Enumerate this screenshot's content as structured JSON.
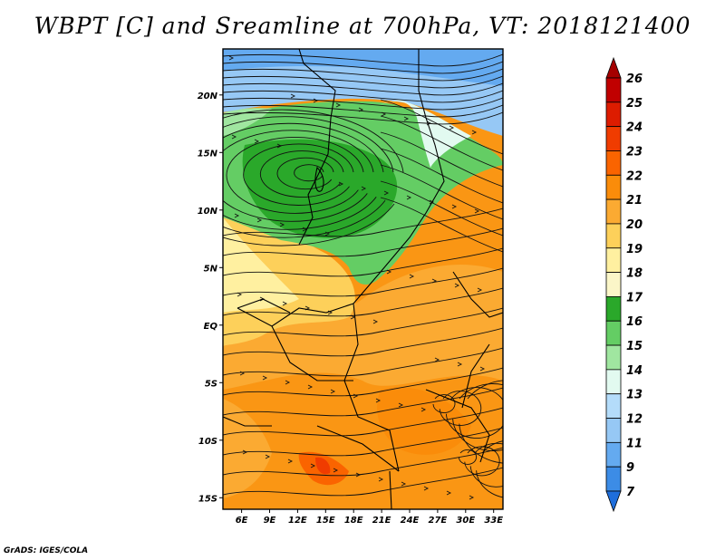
{
  "title": "WBPT [C] and Sreamline at 700hPa, VT: 2018121400",
  "credit": "GrADS: IGES/COLA",
  "map": {
    "lon_range": [
      4,
      34
    ],
    "lat_range": [
      -16,
      24
    ],
    "lon_ticks": [
      "6E",
      "9E",
      "12E",
      "15E",
      "18E",
      "21E",
      "24E",
      "27E",
      "30E",
      "33E"
    ],
    "lat_ticks": [
      "20N",
      "15N",
      "10N",
      "5N",
      "EQ",
      "5S",
      "10S",
      "15S"
    ]
  },
  "colorbar": {
    "levels": [
      "26",
      "25",
      "24",
      "23",
      "22",
      "21",
      "20",
      "19",
      "18",
      "17",
      "16",
      "15",
      "14",
      "13",
      "12",
      "11",
      "9",
      "7"
    ],
    "colors": [
      "#a50000",
      "#c00000",
      "#dd1c00",
      "#f03c00",
      "#fa6400",
      "#fa8c0a",
      "#fbaa32",
      "#fdd05a",
      "#fff0a0",
      "#fbf6c8",
      "#2aa82a",
      "#64cd64",
      "#a0e6a0",
      "#e2faf0",
      "#b4dcfa",
      "#96c8f5",
      "#64aaf0",
      "#3c8ce6",
      "#1e6edc"
    ]
  }
}
